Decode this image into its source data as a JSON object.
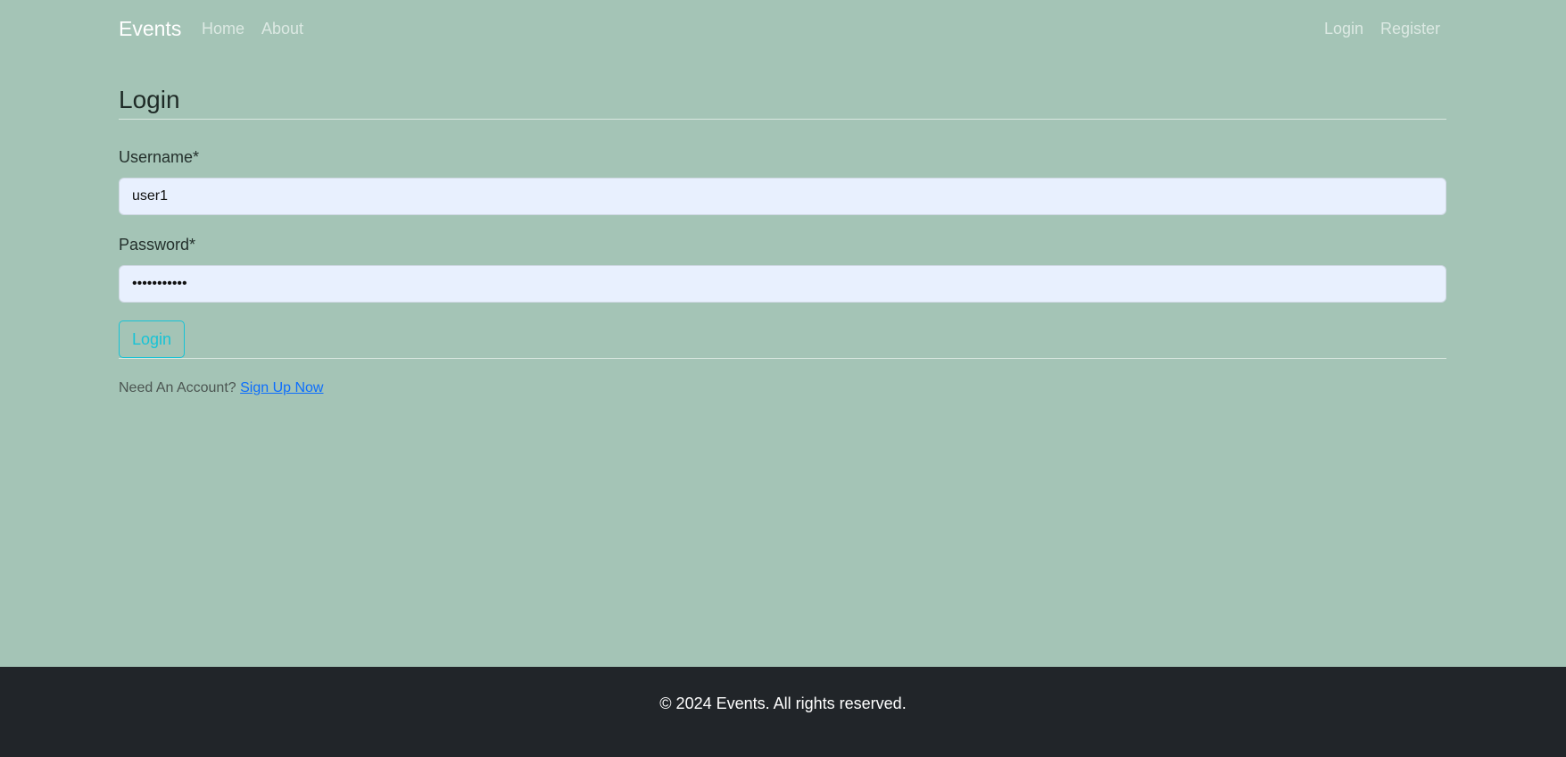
{
  "navbar": {
    "brand": "Events",
    "left_links": [
      "Home",
      "About"
    ],
    "right_links": [
      "Login",
      "Register"
    ]
  },
  "page": {
    "title": "Login"
  },
  "form": {
    "username_label": "Username*",
    "username_value": "user1",
    "password_label": "Password*",
    "password_value": "•••••••••••",
    "submit_label": "Login"
  },
  "signup": {
    "prompt": "Need An Account?",
    "link_text": "Sign Up Now"
  },
  "footer": {
    "text": "© 2024 Events. All rights reserved."
  },
  "colors": {
    "background": "#a4c4b6",
    "footer_bg": "#212529",
    "input_bg": "#e8f0fe",
    "button_accent": "#17c3d6",
    "link": "#0d6efd"
  }
}
